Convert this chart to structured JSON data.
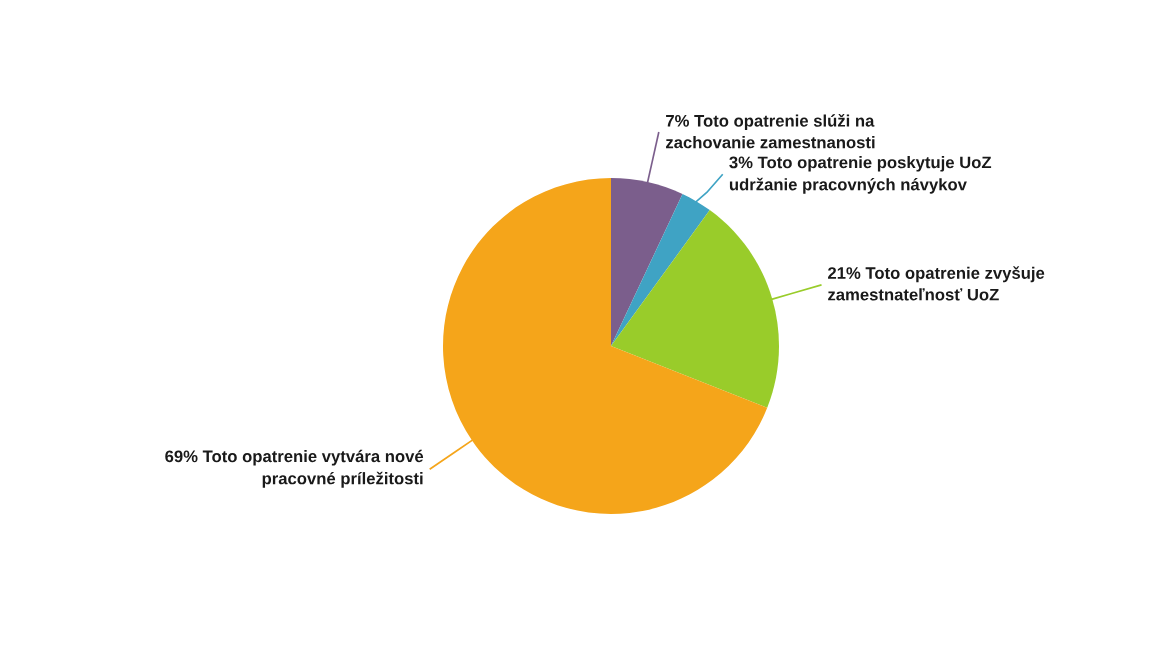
{
  "chart_data": {
    "type": "pie",
    "categories": [
      "Toto opatrenie slúži na\nzachovanie zamestnanosti",
      "Toto opatrenie poskytuje UoZ\nudržanie pracovných návykov",
      "Toto opatrenie zvyšuje\nzamestnateľnosť UoZ",
      "Toto opatrenie vytvára nové\npracovné príležitosti"
    ],
    "values": [
      7,
      3,
      21,
      69
    ],
    "value_labels": [
      "7%",
      "3%",
      "21%",
      "69%"
    ],
    "colors": [
      "#7b5e8c",
      "#3fa3c4",
      "#99cc2a",
      "#f5a51a"
    ]
  }
}
